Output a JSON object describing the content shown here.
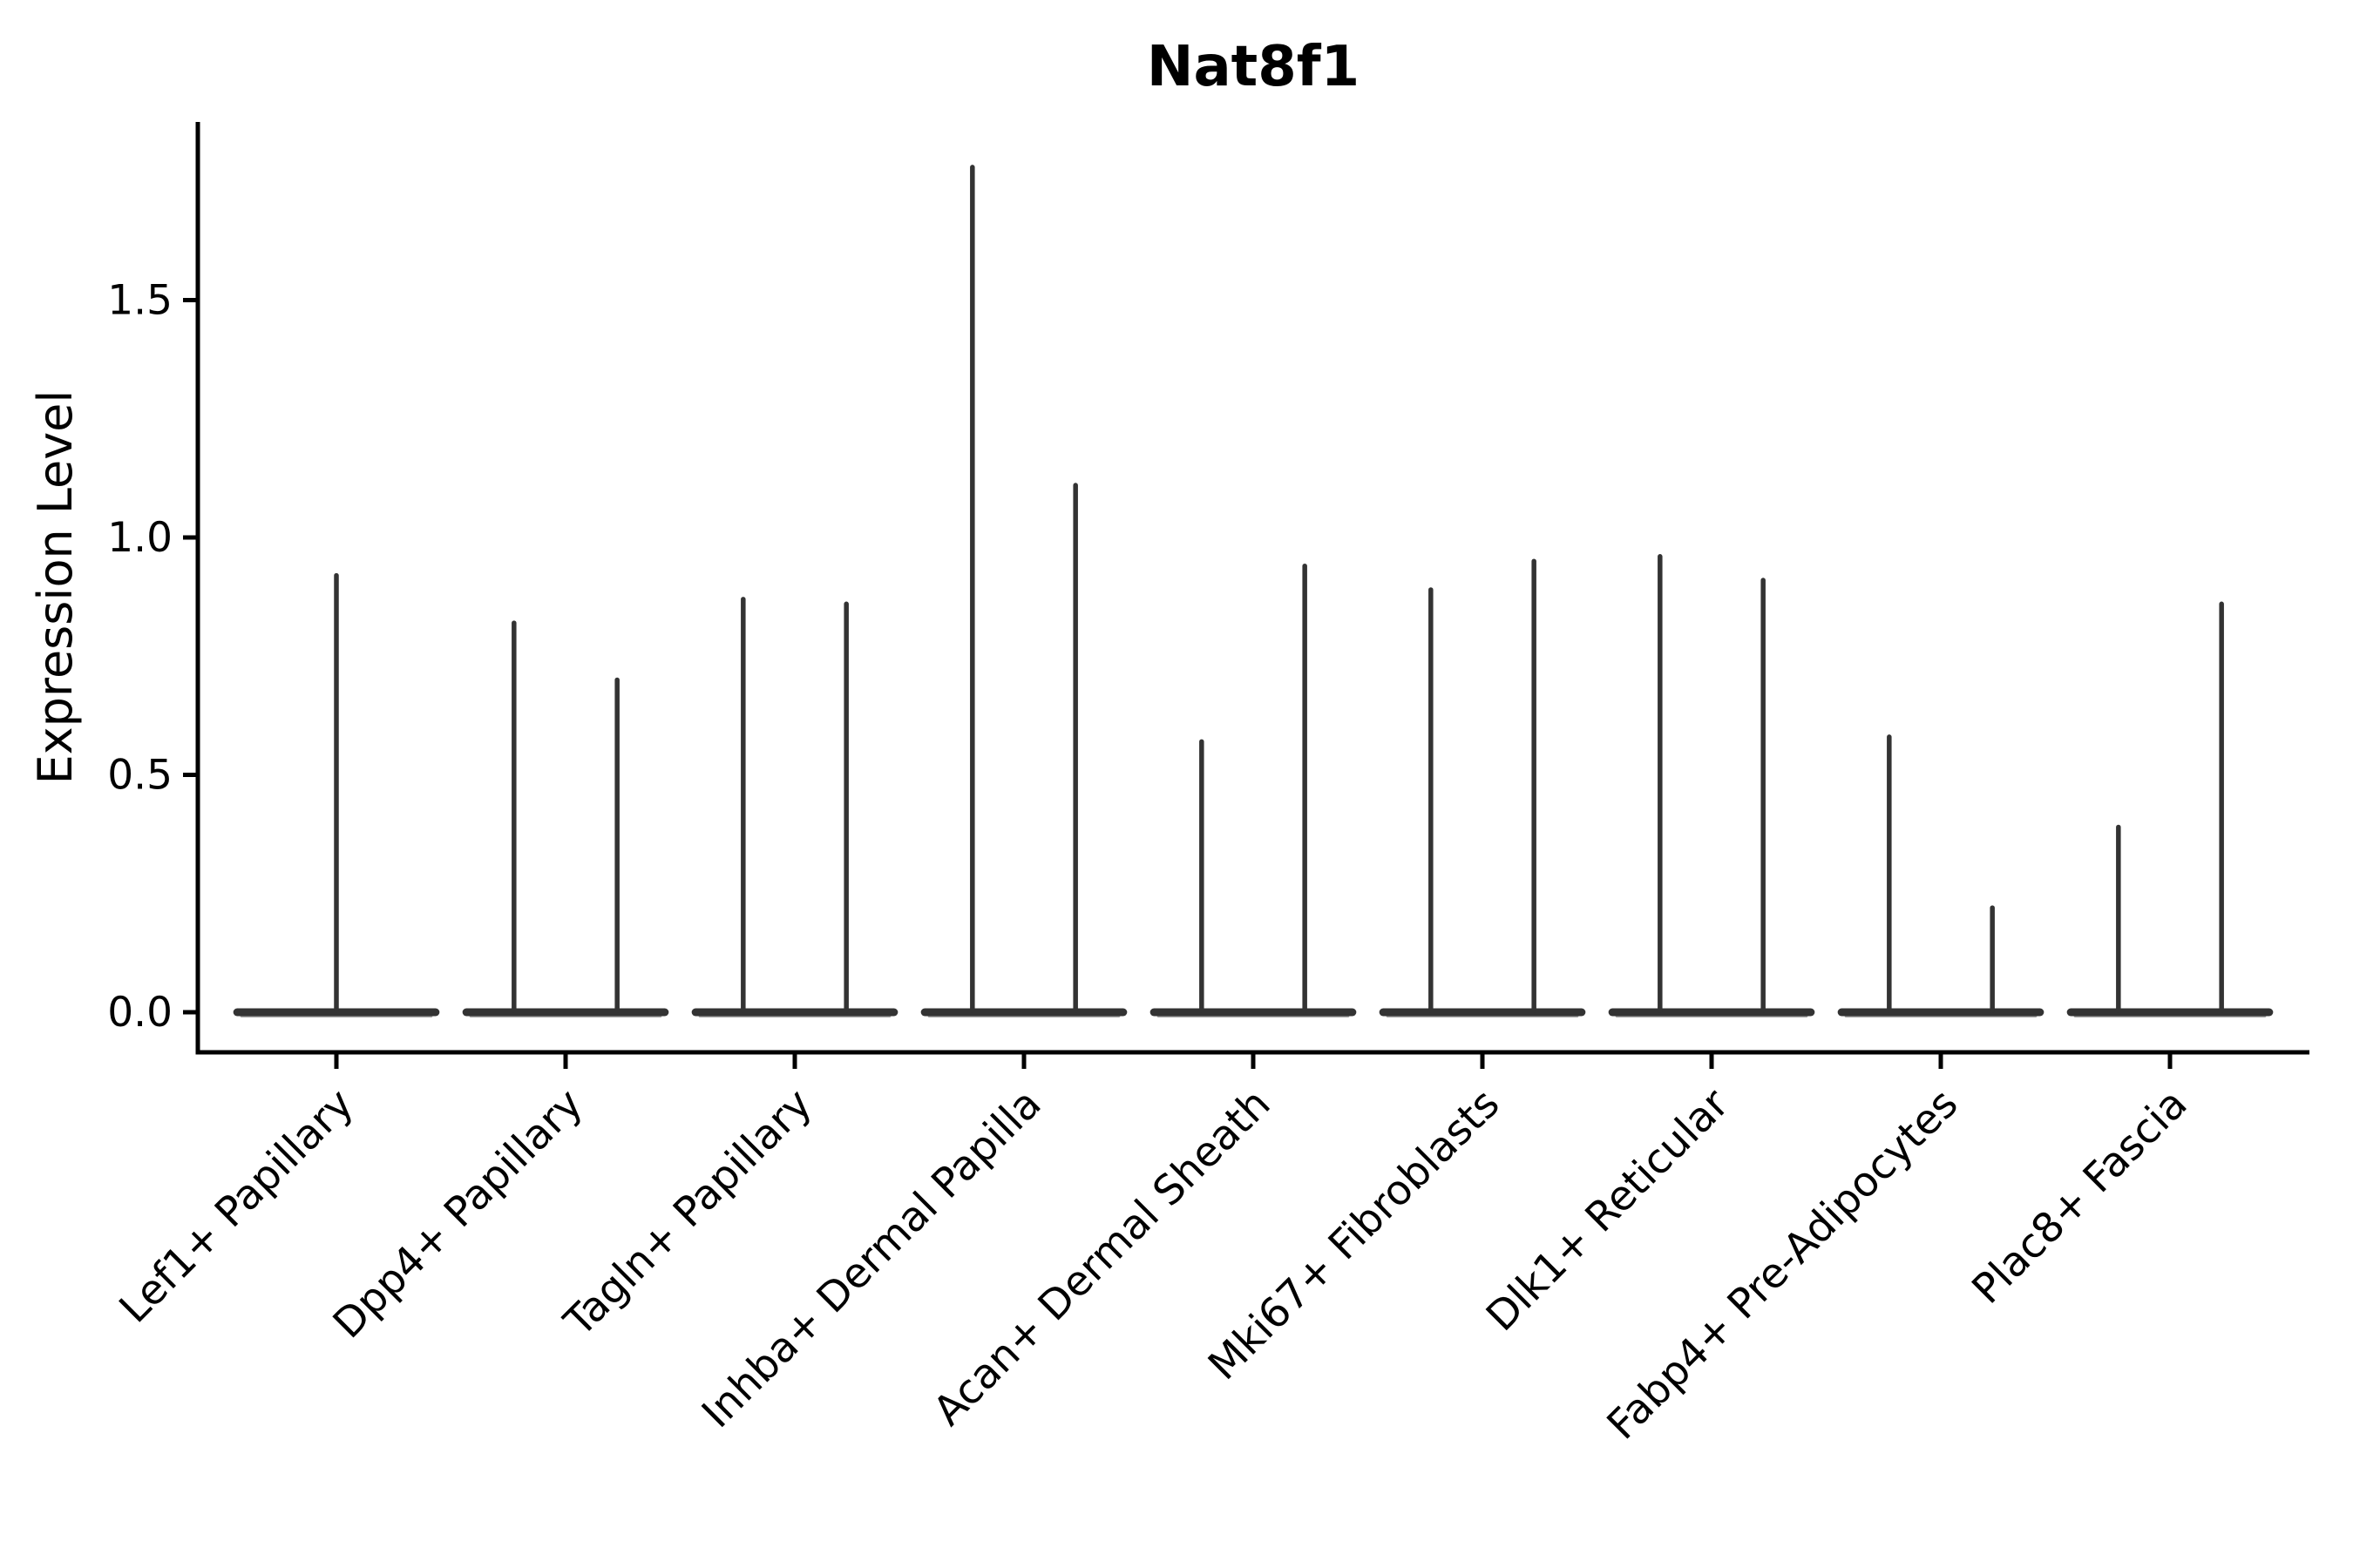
{
  "chart_data": {
    "type": "violin",
    "title": "Nat8f1",
    "xlabel": "",
    "ylabel": "Expression Level",
    "yticks": [
      0.0,
      0.5,
      1.0,
      1.5
    ],
    "ylim": [
      -0.085,
      1.875
    ],
    "grid": false,
    "legend": "none",
    "categories": [
      "Lef1+ Papillary",
      "Dpp4+ Papillary",
      "Tagln+ Papillary",
      "Inhba+ Dermal Papilla",
      "Acan+ Dermal Sheath",
      "Mki67+ Fibroblasts",
      "Dlk1+ Reticular",
      "Fabp4+ Pre-Adipocytes",
      "Plac8+ Fascia"
    ],
    "violins": [
      {
        "category": "Lef1+ Papillary",
        "spikes": [
          {
            "offset": 0.0,
            "max": 0.92
          }
        ]
      },
      {
        "category": "Dpp4+ Papillary",
        "spikes": [
          {
            "offset": -0.225,
            "max": 0.82
          },
          {
            "offset": 0.225,
            "max": 0.7
          }
        ]
      },
      {
        "category": "Tagln+ Papillary",
        "spikes": [
          {
            "offset": -0.225,
            "max": 0.87
          },
          {
            "offset": 0.225,
            "max": 0.86
          }
        ]
      },
      {
        "category": "Inhba+ Dermal Papilla",
        "spikes": [
          {
            "offset": -0.225,
            "max": 1.78
          },
          {
            "offset": 0.225,
            "max": 1.11
          }
        ]
      },
      {
        "category": "Acan+ Dermal Sheath",
        "spikes": [
          {
            "offset": -0.225,
            "max": 0.57
          },
          {
            "offset": 0.225,
            "max": 0.94
          }
        ]
      },
      {
        "category": "Mki67+ Fibroblasts",
        "spikes": [
          {
            "offset": -0.225,
            "max": 0.89
          },
          {
            "offset": 0.225,
            "max": 0.95
          }
        ]
      },
      {
        "category": "Dlk1+ Reticular",
        "spikes": [
          {
            "offset": -0.225,
            "max": 0.96
          },
          {
            "offset": 0.225,
            "max": 0.91
          }
        ]
      },
      {
        "category": "Fabp4+ Pre-Adipocytes",
        "spikes": [
          {
            "offset": -0.225,
            "max": 0.58
          },
          {
            "offset": 0.225,
            "max": 0.22
          }
        ]
      },
      {
        "category": "Plac8+ Fascia",
        "spikes": [
          {
            "offset": -0.225,
            "max": 0.39
          },
          {
            "offset": 0.225,
            "max": 0.86
          }
        ]
      }
    ],
    "violin_halfwidth": 0.45,
    "colors": {
      "violin": "#333333",
      "violin_fill_edge": "#a0a0a0",
      "axis": "#000000",
      "text": "#000000",
      "background": "#ffffff"
    }
  }
}
